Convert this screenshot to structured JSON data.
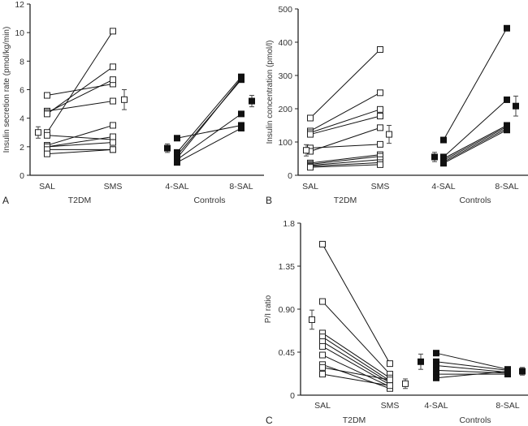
{
  "chart_data": [
    {
      "type": "line",
      "panel_label": "A",
      "title": "",
      "xlabel": "",
      "ylabel": "Insulin secretion rate (pmol/kg/min)",
      "ylim": [
        0,
        12
      ],
      "yticks": [
        "0",
        "2",
        "4",
        "6",
        "8",
        "10",
        "12"
      ],
      "ytick_values": [
        0,
        2,
        4,
        6,
        8,
        10,
        12
      ],
      "categories": [
        "SAL",
        "SMS",
        "4-SAL",
        "8-SAL"
      ],
      "group_labels": [
        "T2DM",
        "Controls"
      ],
      "groups": [
        {
          "name": "T2DM",
          "marker": "open-square",
          "conditions": [
            "SAL",
            "SMS"
          ],
          "pairs": [
            [
              5.6,
              6.4
            ],
            [
              4.5,
              5.2
            ],
            [
              4.4,
              6.7
            ],
            [
              4.3,
              7.6
            ],
            [
              3.0,
              10.1
            ],
            [
              2.8,
              2.5
            ],
            [
              2.1,
              3.5
            ],
            [
              2.0,
              2.7
            ],
            [
              2.0,
              2.3
            ],
            [
              1.8,
              1.8
            ],
            [
              1.5,
              1.8
            ]
          ],
          "mean": [
            {
              "value": 3.0,
              "sem": 0.4
            },
            {
              "value": 5.3,
              "sem": 0.7
            }
          ]
        },
        {
          "name": "Controls",
          "marker": "filled-square",
          "conditions": [
            "4-SAL",
            "8-SAL"
          ],
          "pairs": [
            [
              2.6,
              3.5
            ],
            [
              1.6,
              6.9
            ],
            [
              1.4,
              6.7
            ],
            [
              1.2,
              6.8
            ],
            [
              1.1,
              4.3
            ],
            [
              0.9,
              3.3
            ]
          ],
          "mean": [
            {
              "value": 1.9,
              "sem": 0.3
            },
            {
              "value": 5.2,
              "sem": 0.4
            }
          ]
        }
      ]
    },
    {
      "type": "line",
      "panel_label": "B",
      "title": "",
      "xlabel": "",
      "ylabel": "Insulin concentration (pmol/l)",
      "ylim": [
        0,
        500
      ],
      "yticks": [
        "0",
        "100",
        "200",
        "300",
        "400",
        "500"
      ],
      "ytick_values": [
        0,
        100,
        200,
        300,
        400,
        500
      ],
      "categories": [
        "SAL",
        "SMS",
        "4-SAL",
        "8-SAL"
      ],
      "group_labels": [
        "T2DM",
        "Controls"
      ],
      "groups": [
        {
          "name": "T2DM",
          "marker": "open-square",
          "conditions": [
            "SAL",
            "SMS"
          ],
          "pairs": [
            [
              172,
              378
            ],
            [
              133,
              248
            ],
            [
              128,
              198
            ],
            [
              123,
              178
            ],
            [
              82,
              93
            ],
            [
              72,
              143
            ],
            [
              37,
              62
            ],
            [
              33,
              57
            ],
            [
              30,
              47
            ],
            [
              27,
              38
            ],
            [
              24,
              32
            ]
          ],
          "mean": [
            {
              "value": 75,
              "sem": 17
            },
            {
              "value": 123,
              "sem": 27
            }
          ]
        },
        {
          "name": "Controls",
          "marker": "filled-square",
          "conditions": [
            "4-SAL",
            "8-SAL"
          ],
          "pairs": [
            [
              106,
              442
            ],
            [
              55,
              227
            ],
            [
              50,
              150
            ],
            [
              45,
              146
            ],
            [
              40,
              141
            ],
            [
              36,
              136
            ]
          ],
          "mean": [
            {
              "value": 55,
              "sem": 14
            },
            {
              "value": 208,
              "sem": 30
            }
          ]
        }
      ]
    },
    {
      "type": "line",
      "panel_label": "C",
      "title": "",
      "xlabel": "",
      "ylabel": "P/I ratio",
      "ylim": [
        0,
        1.8
      ],
      "yticks": [
        "0",
        "0.45",
        "0.90",
        "1.35",
        "1.8"
      ],
      "ytick_values": [
        0,
        0.45,
        0.9,
        1.35,
        1.8
      ],
      "categories": [
        "SAL",
        "SMS",
        "4-SAL",
        "8-SAL"
      ],
      "group_labels": [
        "T2DM",
        "Controls"
      ],
      "groups": [
        {
          "name": "T2DM",
          "marker": "open-square",
          "conditions": [
            "SAL",
            "SMS"
          ],
          "pairs": [
            [
              1.58,
              0.33
            ],
            [
              0.98,
              0.22
            ],
            [
              0.65,
              0.18
            ],
            [
              0.61,
              0.15
            ],
            [
              0.56,
              0.13
            ],
            [
              0.51,
              0.11
            ],
            [
              0.42,
              0.09
            ],
            [
              0.32,
              0.07
            ],
            [
              0.29,
              0.16
            ],
            [
              0.22,
              0.1
            ]
          ],
          "mean": [
            {
              "value": 0.79,
              "sem": 0.1
            },
            {
              "value": 0.12,
              "sem": 0.05
            }
          ]
        },
        {
          "name": "Controls",
          "marker": "filled-square",
          "conditions": [
            "4-SAL",
            "8-SAL"
          ],
          "pairs": [
            [
              0.44,
              0.27
            ],
            [
              0.35,
              0.26
            ],
            [
              0.31,
              0.24
            ],
            [
              0.26,
              0.23
            ],
            [
              0.22,
              0.22
            ],
            [
              0.18,
              0.25
            ]
          ],
          "mean": [
            {
              "value": 0.35,
              "sem": 0.08
            },
            {
              "value": 0.25,
              "sem": 0.04
            }
          ]
        }
      ]
    }
  ]
}
